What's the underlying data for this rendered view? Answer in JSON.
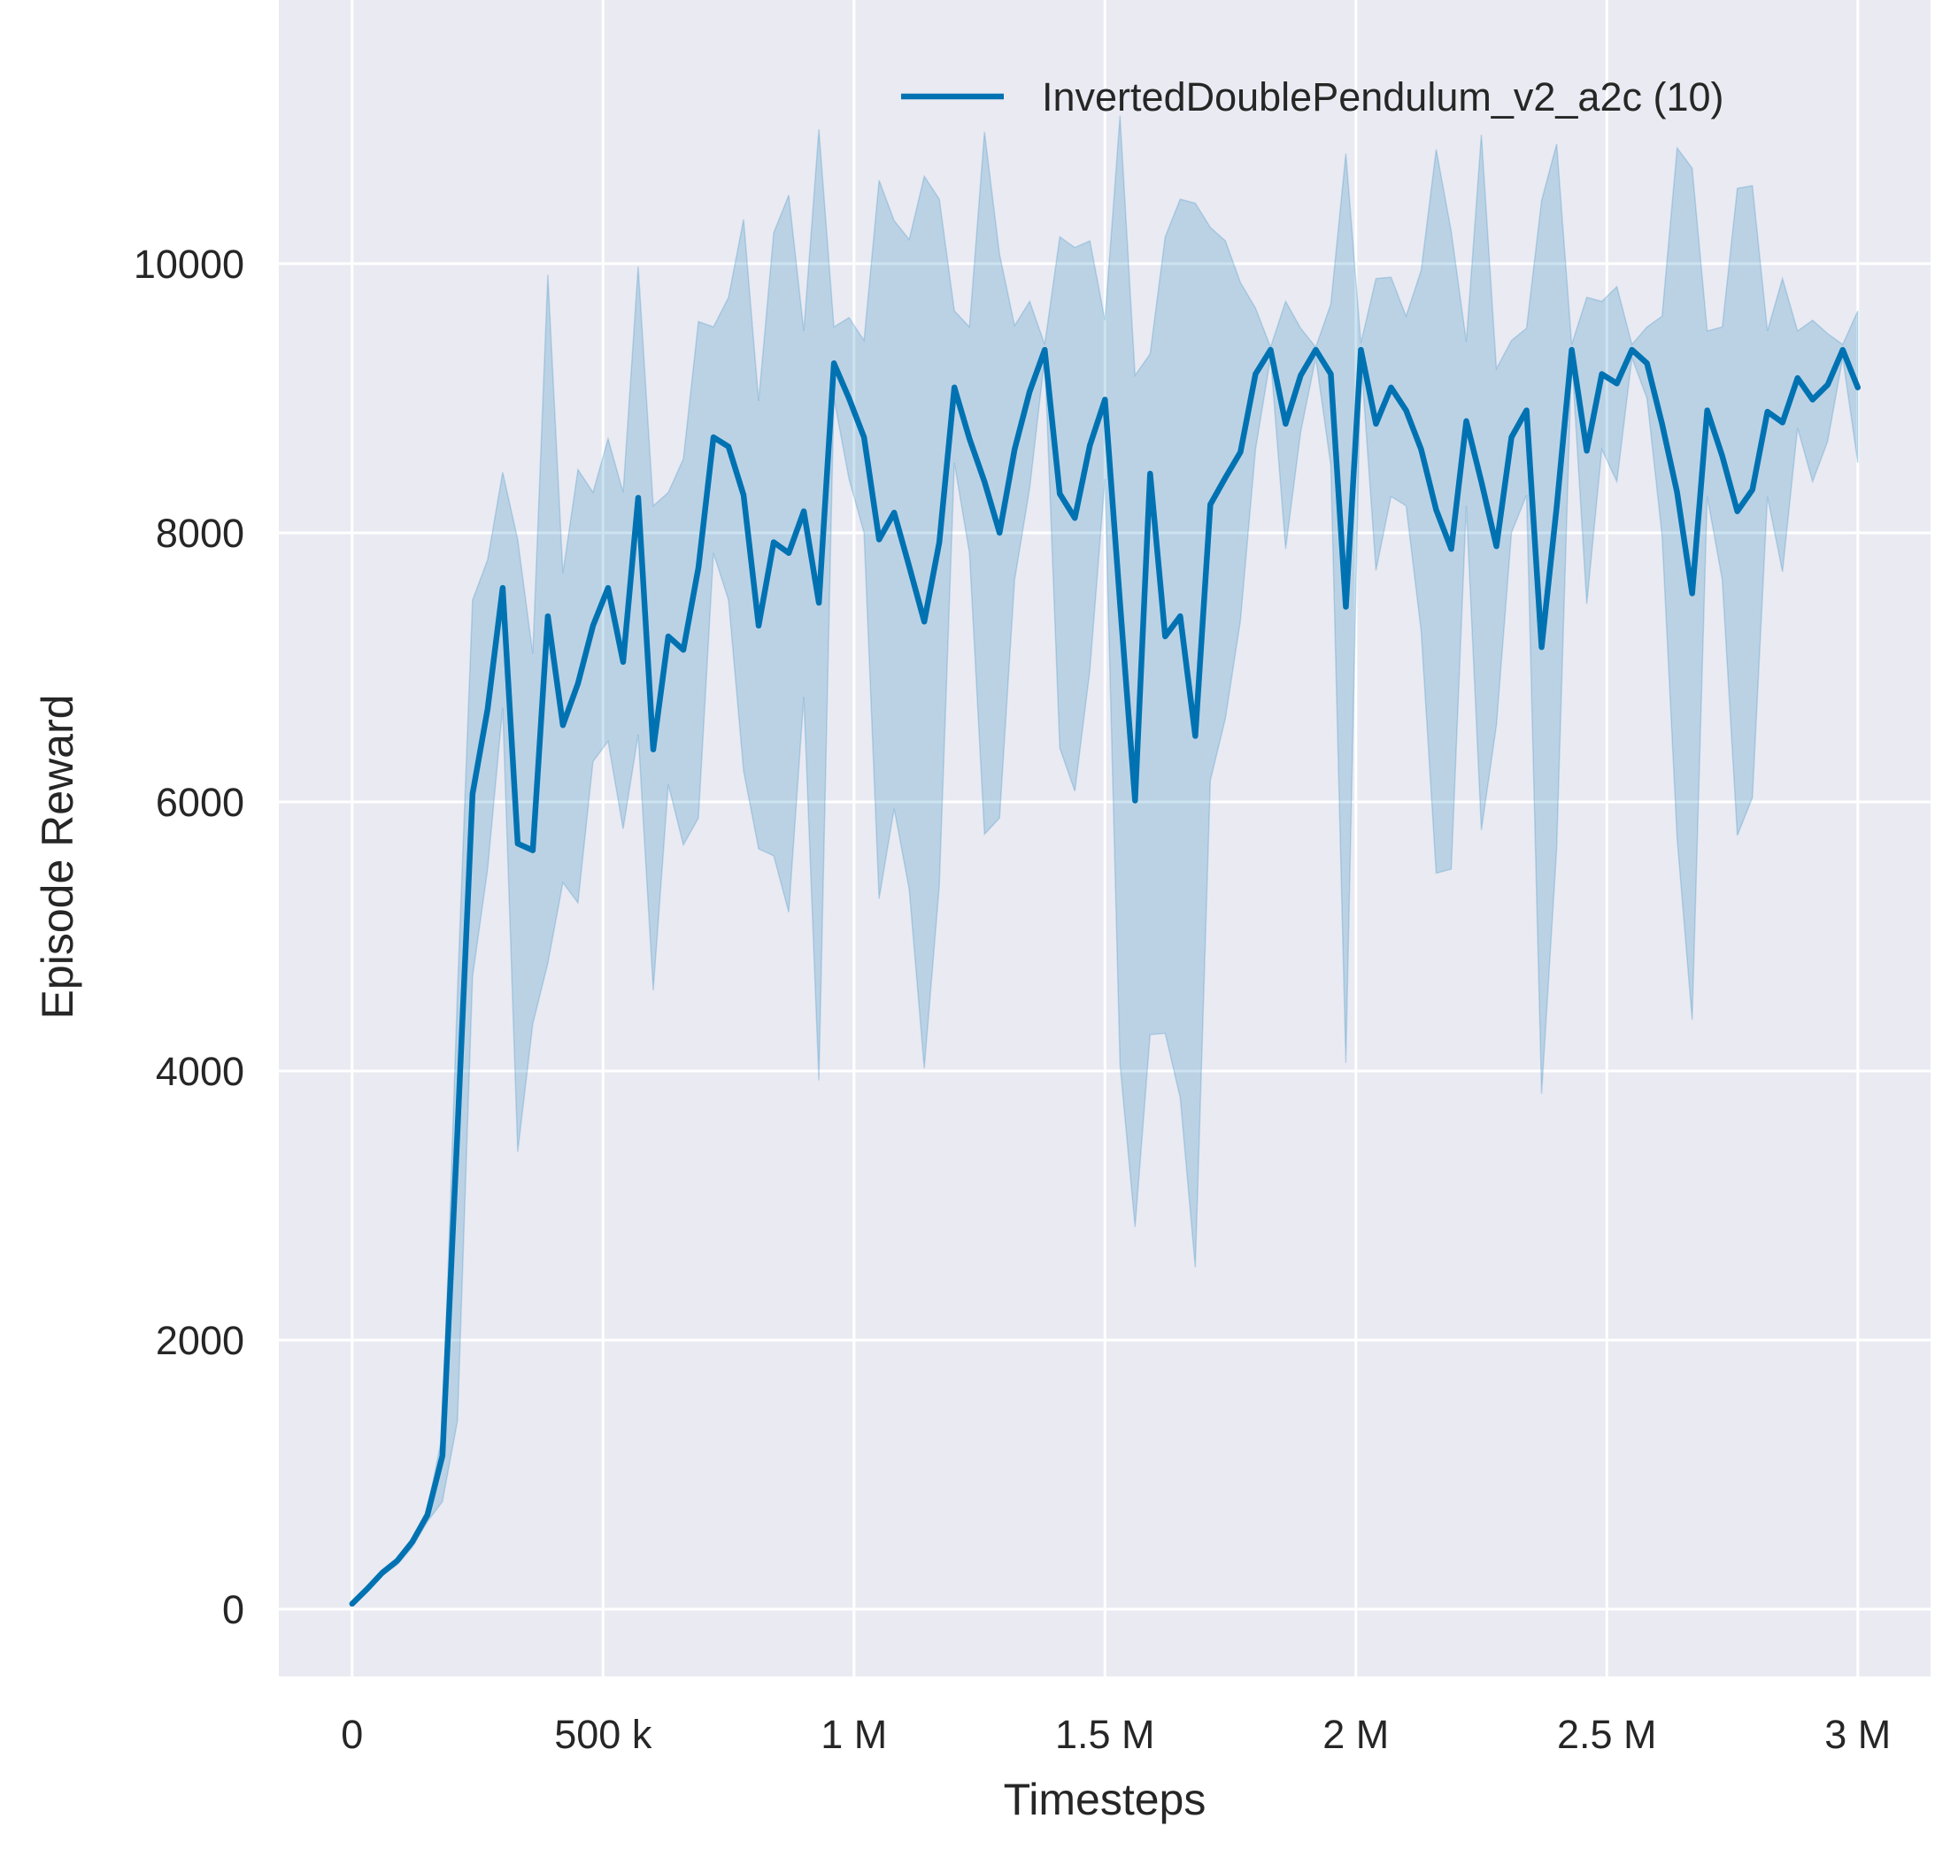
{
  "chart_data": {
    "type": "line",
    "title": "",
    "xlabel": "Timesteps",
    "ylabel": "Episode Reward",
    "xlim": [
      -146000,
      3145000
    ],
    "ylim": [
      -500,
      11960
    ],
    "grid": true,
    "legend_position": "top-right",
    "background_color": "#EAEAF2",
    "x_ticks": [
      0,
      500000,
      1000000,
      1500000,
      2000000,
      2500000,
      3000000
    ],
    "x_tick_labels": [
      "0",
      "500 k",
      "1 M",
      "1.5 M",
      "2 M",
      "2.5 M",
      "3 M"
    ],
    "y_ticks": [
      0,
      2000,
      4000,
      6000,
      8000,
      10000
    ],
    "y_tick_labels": [
      "0",
      "2000",
      "4000",
      "6000",
      "8000",
      "10000"
    ],
    "series": [
      {
        "name": "InvertedDoublePendulum_v2_a2c (10)",
        "color": "#0072B2",
        "band_color": "#0072B2",
        "x": [
          0,
          30000,
          60000,
          90000,
          120000,
          150000,
          180000,
          210000,
          240000,
          270000,
          300000,
          330000,
          360000,
          390000,
          420000,
          450000,
          480000,
          510000,
          540000,
          570000,
          600000,
          630000,
          660000,
          690000,
          720000,
          750000,
          780000,
          810000,
          840000,
          870000,
          900000,
          930000,
          960000,
          990000,
          1020000,
          1050000,
          1080000,
          1110000,
          1140000,
          1170000,
          1200000,
          1230000,
          1260000,
          1290000,
          1320000,
          1350000,
          1380000,
          1410000,
          1440000,
          1470000,
          1500000,
          1530000,
          1560000,
          1590000,
          1620000,
          1650000,
          1680000,
          1710000,
          1740000,
          1770000,
          1800000,
          1830000,
          1860000,
          1890000,
          1920000,
          1950000,
          1980000,
          2010000,
          2040000,
          2070000,
          2100000,
          2130000,
          2160000,
          2190000,
          2220000,
          2250000,
          2280000,
          2310000,
          2340000,
          2370000,
          2400000,
          2430000,
          2460000,
          2490000,
          2520000,
          2550000,
          2580000,
          2610000,
          2640000,
          2670000,
          2700000,
          2730000,
          2760000,
          2790000,
          2820000,
          2850000,
          2880000,
          2910000,
          2940000,
          2970000,
          3000000
        ],
        "mean": [
          40,
          150,
          270,
          360,
          500,
          700,
          1140,
          3560,
          6060,
          6690,
          7590,
          5690,
          5640,
          7380,
          6570,
          6880,
          7310,
          7590,
          7040,
          8260,
          6390,
          7230,
          7130,
          7740,
          8710,
          8640,
          8280,
          7310,
          7930,
          7850,
          8160,
          7480,
          9260,
          9000,
          8710,
          7950,
          8150,
          7750,
          7340,
          7930,
          9080,
          8700,
          8380,
          8000,
          8620,
          9050,
          9360,
          8290,
          8110,
          8650,
          8990,
          7480,
          6010,
          8440,
          7230,
          7380,
          6490,
          8210,
          8410,
          8600,
          9180,
          9360,
          8810,
          9170,
          9360,
          9180,
          7450,
          9360,
          8810,
          9080,
          8910,
          8620,
          8170,
          7880,
          8830,
          8380,
          7900,
          8710,
          8910,
          7150,
          8190,
          9360,
          8610,
          9180,
          9110,
          9360,
          9260,
          8810,
          8300,
          7550,
          8910,
          8570,
          8160,
          8320,
          8900,
          8820,
          9150,
          8990,
          9100,
          9360,
          9080
        ],
        "upper": [
          40,
          170,
          280,
          380,
          530,
          740,
          1300,
          4600,
          7500,
          7800,
          8450,
          7950,
          7100,
          9920,
          7700,
          8470,
          8300,
          8700,
          8300,
          9980,
          8200,
          8300,
          8550,
          9570,
          9530,
          9750,
          10330,
          8980,
          10230,
          10510,
          9500,
          11000,
          9530,
          9600,
          9430,
          10620,
          10320,
          10180,
          10650,
          10480,
          9650,
          9530,
          10980,
          10070,
          9540,
          9720,
          9400,
          10200,
          10120,
          10170,
          9580,
          11100,
          9170,
          9330,
          10200,
          10480,
          10450,
          10270,
          10170,
          9860,
          9670,
          9380,
          9720,
          9520,
          9380,
          9700,
          10820,
          9410,
          9890,
          9900,
          9610,
          9950,
          10850,
          10240,
          9420,
          10960,
          9220,
          9430,
          9520,
          10470,
          10890,
          9400,
          9750,
          9720,
          9830,
          9400,
          9530,
          9610,
          10860,
          10710,
          9500,
          9530,
          10560,
          10580,
          9500,
          9890,
          9500,
          9580,
          9480,
          9400,
          9650
        ],
        "lower": [
          40,
          140,
          250,
          330,
          460,
          650,
          800,
          1400,
          4700,
          5500,
          6700,
          3400,
          4350,
          4800,
          5400,
          5250,
          6300,
          6450,
          5800,
          6500,
          4600,
          6130,
          5680,
          5880,
          7850,
          7500,
          6230,
          5650,
          5600,
          5180,
          6780,
          3930,
          9000,
          8400,
          8000,
          5280,
          5950,
          5350,
          4020,
          5380,
          8520,
          7850,
          5760,
          5880,
          7650,
          8330,
          9300,
          6400,
          6080,
          6980,
          8400,
          4050,
          2840,
          4270,
          4280,
          3800,
          2540,
          6160,
          6620,
          7350,
          8620,
          9300,
          7880,
          8750,
          9300,
          8500,
          4060,
          9300,
          7720,
          8270,
          8200,
          7270,
          5470,
          5500,
          8200,
          5790,
          6570,
          8000,
          8280,
          3830,
          5650,
          9300,
          7470,
          8620,
          8380,
          9300,
          9000,
          7980,
          5730,
          4380,
          8270,
          7650,
          5750,
          6030,
          8270,
          7710,
          8780,
          8380,
          8680,
          9300,
          8520
        ]
      }
    ]
  }
}
